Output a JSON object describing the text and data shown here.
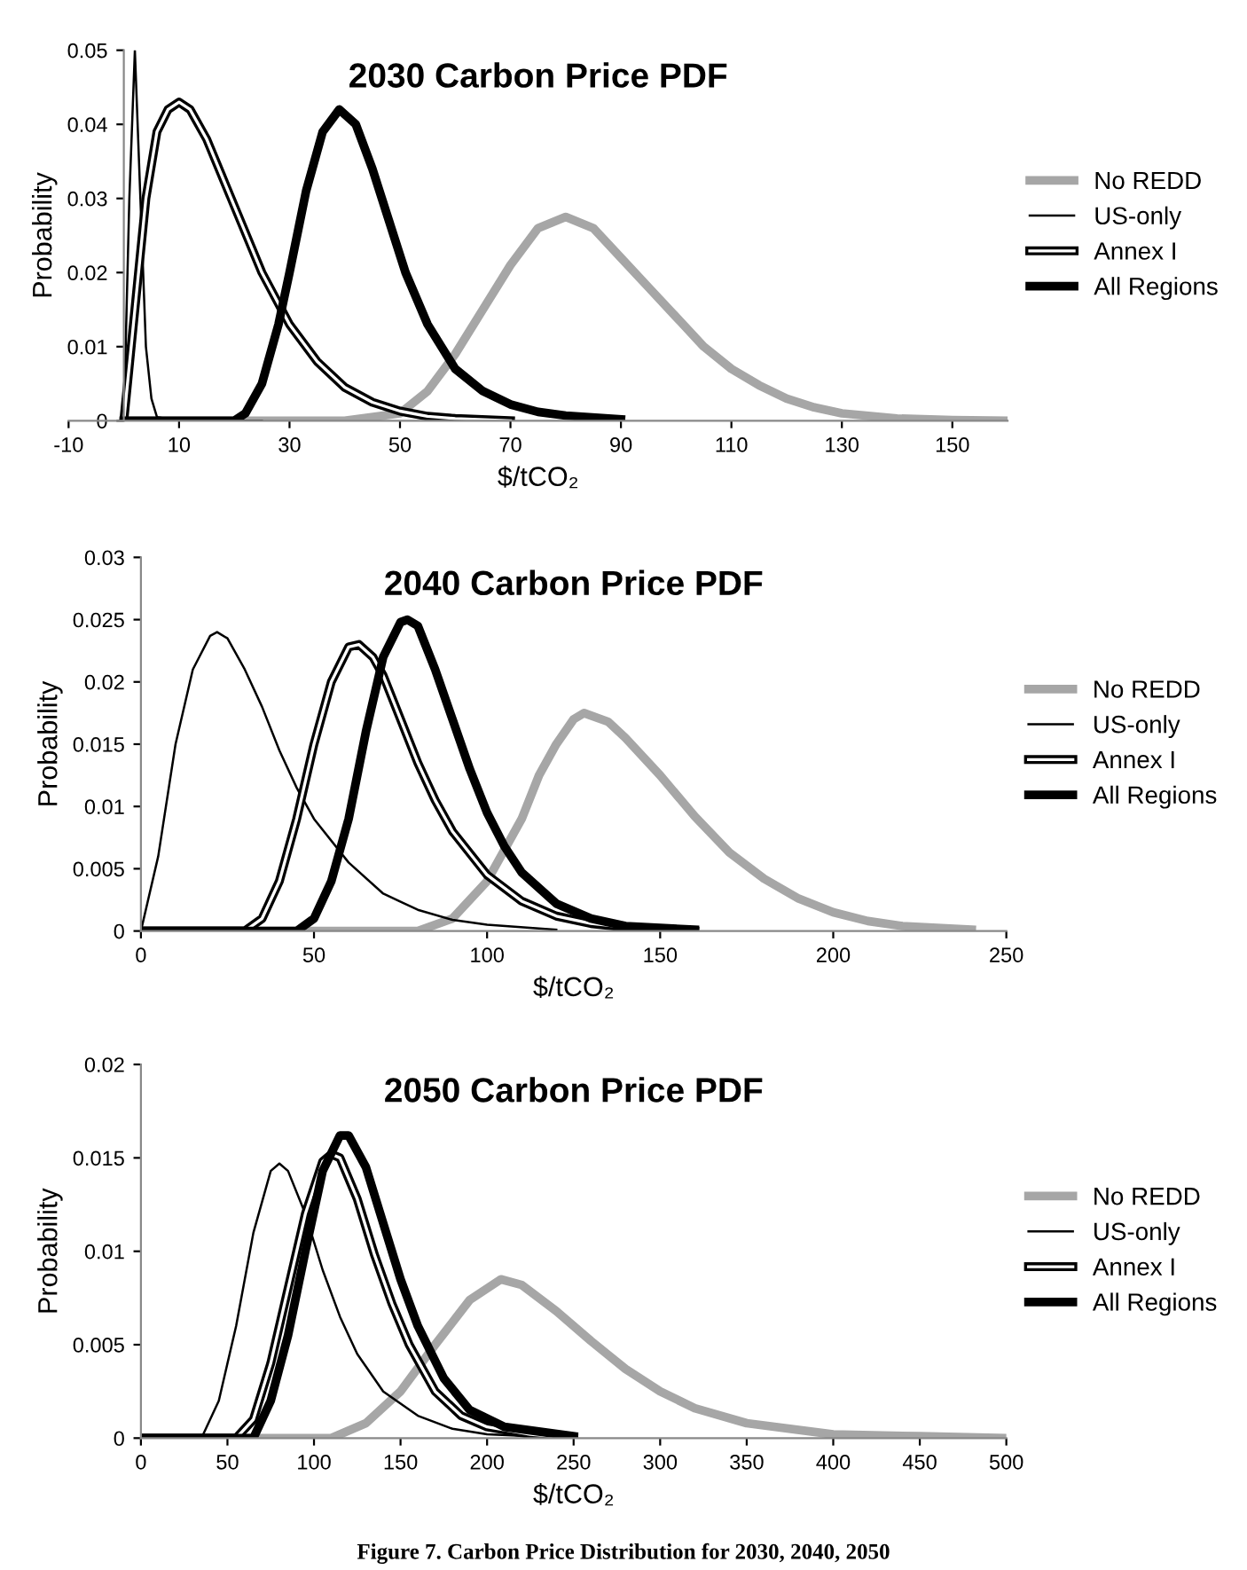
{
  "chart_data": [
    {
      "type": "line",
      "title": "2030 Carbon Price PDF",
      "xlabel": "$/tCO₂",
      "ylabel": "Probability",
      "xlim": [
        -10,
        160
      ],
      "xticks": [
        -10,
        10,
        30,
        50,
        70,
        90,
        110,
        130,
        150
      ],
      "ylim": [
        0,
        0.05
      ],
      "yticks": [
        0,
        0.01,
        0.02,
        0.03,
        0.04,
        0.05
      ],
      "legend": "right",
      "grid": false,
      "series": [
        {
          "name": "No REDD",
          "color": "#a6a6a6",
          "x": [
            0,
            40,
            50,
            55,
            60,
            65,
            70,
            75,
            80,
            85,
            90,
            95,
            100,
            105,
            110,
            115,
            120,
            125,
            130,
            140,
            150,
            160
          ],
          "values": [
            0,
            0,
            0.001,
            0.004,
            0.009,
            0.015,
            0.021,
            0.026,
            0.0275,
            0.026,
            0.022,
            0.018,
            0.014,
            0.01,
            0.007,
            0.0048,
            0.003,
            0.0018,
            0.001,
            0.0003,
            0.0001,
            0
          ]
        },
        {
          "name": "US-only",
          "color": "#000000",
          "x": [
            0,
            1,
            2,
            3,
            4,
            5,
            6,
            10,
            25
          ],
          "values": [
            0,
            0.03,
            0.05,
            0.03,
            0.01,
            0.003,
            0.0005,
            0,
            0
          ]
        },
        {
          "name": "Annex I",
          "color": "#000000",
          "x": [
            0,
            2,
            4,
            6,
            8,
            10,
            12,
            15,
            20,
            25,
            30,
            35,
            40,
            45,
            50,
            55,
            60,
            70
          ],
          "values": [
            0,
            0.015,
            0.03,
            0.039,
            0.042,
            0.043,
            0.042,
            0.038,
            0.029,
            0.02,
            0.013,
            0.008,
            0.0045,
            0.0025,
            0.0013,
            0.0006,
            0.0003,
            0
          ]
        },
        {
          "name": "All Regions",
          "color": "#000000",
          "x": [
            0,
            20,
            22,
            25,
            28,
            30,
            33,
            36,
            39,
            42,
            45,
            48,
            51,
            55,
            60,
            65,
            70,
            75,
            80,
            90
          ],
          "values": [
            0,
            0,
            0.001,
            0.005,
            0.013,
            0.02,
            0.031,
            0.039,
            0.042,
            0.04,
            0.034,
            0.027,
            0.02,
            0.013,
            0.007,
            0.004,
            0.0022,
            0.0012,
            0.0007,
            0.0002
          ]
        }
      ]
    },
    {
      "type": "line",
      "title": "2040 Carbon Price PDF",
      "xlabel": "$/tCO₂",
      "ylabel": "Probability",
      "xlim": [
        0,
        250
      ],
      "xticks": [
        0,
        50,
        100,
        150,
        200,
        250
      ],
      "ylim": [
        0,
        0.03
      ],
      "yticks": [
        0,
        0.005,
        0.01,
        0.015,
        0.02,
        0.025,
        0.03
      ],
      "legend": "right",
      "grid": false,
      "series": [
        {
          "name": "No REDD",
          "color": "#a6a6a6",
          "x": [
            0,
            80,
            90,
            100,
            110,
            115,
            120,
            125,
            128,
            135,
            140,
            150,
            160,
            170,
            180,
            190,
            200,
            210,
            220,
            240
          ],
          "values": [
            0,
            0,
            0.001,
            0.004,
            0.009,
            0.0125,
            0.015,
            0.017,
            0.0175,
            0.0168,
            0.0155,
            0.0125,
            0.0092,
            0.0063,
            0.0042,
            0.0026,
            0.0015,
            0.0008,
            0.0004,
            0.0001
          ]
        },
        {
          "name": "US-only",
          "color": "#000000",
          "x": [
            0,
            5,
            10,
            15,
            20,
            22,
            25,
            30,
            35,
            40,
            45,
            50,
            60,
            70,
            80,
            90,
            100,
            120
          ],
          "values": [
            0,
            0.006,
            0.015,
            0.021,
            0.0237,
            0.024,
            0.0235,
            0.021,
            0.018,
            0.0145,
            0.0115,
            0.009,
            0.0055,
            0.003,
            0.0017,
            0.0009,
            0.0005,
            0.0001
          ]
        },
        {
          "name": "Annex I",
          "color": "#000000",
          "x": [
            0,
            30,
            35,
            40,
            45,
            50,
            55,
            60,
            63,
            67,
            70,
            75,
            80,
            85,
            90,
            100,
            110,
            120,
            130,
            140,
            160
          ],
          "values": [
            0,
            0,
            0.001,
            0.004,
            0.009,
            0.015,
            0.02,
            0.0228,
            0.023,
            0.022,
            0.0205,
            0.017,
            0.0135,
            0.0105,
            0.008,
            0.0045,
            0.0024,
            0.0012,
            0.0006,
            0.0003,
            0
          ]
        },
        {
          "name": "All Regions",
          "color": "#000000",
          "x": [
            0,
            45,
            50,
            55,
            60,
            65,
            70,
            75,
            77,
            80,
            85,
            90,
            95,
            100,
            105,
            110,
            120,
            130,
            140,
            160
          ],
          "values": [
            0,
            0,
            0.001,
            0.004,
            0.009,
            0.016,
            0.022,
            0.0248,
            0.025,
            0.0245,
            0.021,
            0.017,
            0.013,
            0.0095,
            0.0068,
            0.0047,
            0.0022,
            0.001,
            0.0004,
            0.0001
          ]
        }
      ]
    },
    {
      "type": "line",
      "title": "2050 Carbon Price PDF",
      "xlabel": "$/tCO₂",
      "ylabel": "Probability",
      "xlim": [
        0,
        500
      ],
      "xticks": [
        0,
        50,
        100,
        150,
        200,
        250,
        300,
        350,
        400,
        450,
        500
      ],
      "ylim": [
        0,
        0.02
      ],
      "yticks": [
        0,
        0.005,
        0.01,
        0.015,
        0.02
      ],
      "legend": "right",
      "grid": false,
      "annotations": [
        "Figure 7. Carbon Price Distribution for 2030, 2040, 2050"
      ],
      "series": [
        {
          "name": "No REDD",
          "color": "#a6a6a6",
          "x": [
            0,
            110,
            130,
            150,
            170,
            190,
            208,
            220,
            240,
            260,
            280,
            300,
            320,
            350,
            400,
            450,
            500
          ],
          "values": [
            0,
            0,
            0.0008,
            0.0025,
            0.005,
            0.0074,
            0.0085,
            0.0082,
            0.0068,
            0.0052,
            0.0037,
            0.0025,
            0.0016,
            0.0008,
            0.0002,
            0.0001,
            0
          ]
        },
        {
          "name": "US-only",
          "color": "#000000",
          "x": [
            0,
            35,
            45,
            55,
            65,
            75,
            80,
            85,
            95,
            105,
            115,
            125,
            140,
            160,
            180,
            200,
            250
          ],
          "values": [
            0,
            0,
            0.002,
            0.006,
            0.011,
            0.0143,
            0.0147,
            0.0143,
            0.012,
            0.009,
            0.0065,
            0.0045,
            0.0025,
            0.0012,
            0.0005,
            0.0002,
            0
          ]
        },
        {
          "name": "Annex I",
          "color": "#000000",
          "x": [
            0,
            55,
            65,
            75,
            85,
            95,
            105,
            110,
            115,
            125,
            135,
            145,
            155,
            170,
            185,
            200,
            225,
            250
          ],
          "values": [
            0,
            0,
            0.001,
            0.004,
            0.008,
            0.012,
            0.0148,
            0.0152,
            0.015,
            0.0128,
            0.0098,
            0.0072,
            0.005,
            0.0025,
            0.0012,
            0.0006,
            0.0002,
            0
          ]
        },
        {
          "name": "All Regions",
          "color": "#000000",
          "x": [
            0,
            65,
            75,
            85,
            95,
            105,
            115,
            120,
            130,
            140,
            150,
            160,
            175,
            190,
            210,
            250
          ],
          "values": [
            0,
            0,
            0.002,
            0.0055,
            0.01,
            0.0143,
            0.0162,
            0.0162,
            0.0145,
            0.0115,
            0.0085,
            0.006,
            0.0032,
            0.0015,
            0.0006,
            0.0001
          ]
        }
      ]
    }
  ]
}
